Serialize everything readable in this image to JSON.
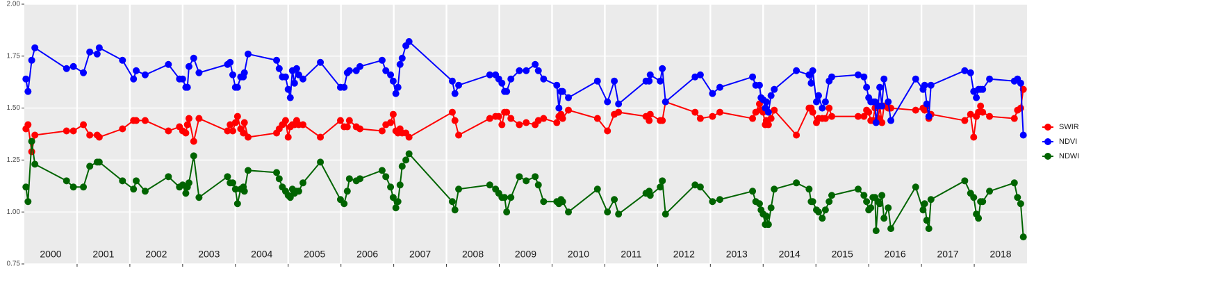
{
  "chart_data": {
    "type": "line",
    "x": [
      2000.03,
      2000.07,
      2000.14,
      2000.2,
      2000.8,
      2000.93,
      2001.12,
      2001.24,
      2001.38,
      2001.42,
      2001.86,
      2002.07,
      2002.12,
      2002.29,
      2002.73,
      2002.94,
      2003.0,
      2003.06,
      2003.09,
      2003.12,
      2003.21,
      2003.31,
      2003.85,
      2003.9,
      2003.95,
      2004.0,
      2004.04,
      2004.1,
      2004.15,
      2004.17,
      2004.24,
      2004.78,
      2004.83,
      2004.89,
      2004.95,
      2005.0,
      2005.04,
      2005.08,
      2005.12,
      2005.16,
      2005.2,
      2005.28,
      2005.61,
      2005.99,
      2006.06,
      2006.12,
      2006.16,
      2006.29,
      2006.36,
      2006.78,
      2006.85,
      2006.94,
      2006.99,
      2007.04,
      2007.08,
      2007.12,
      2007.16,
      2007.23,
      2007.29,
      2008.11,
      2008.16,
      2008.23,
      2008.82,
      2008.93,
      2008.99,
      2009.05,
      2009.1,
      2009.14,
      2009.22,
      2009.38,
      2009.51,
      2009.68,
      2009.74,
      2009.84,
      2010.09,
      2010.13,
      2010.17,
      2010.2,
      2010.31,
      2010.86,
      2011.05,
      2011.18,
      2011.26,
      2011.78,
      2011.84,
      2011.86,
      2012.05,
      2012.09,
      2012.15,
      2012.71,
      2012.81,
      2013.04,
      2013.18,
      2013.8,
      2013.86,
      2013.93,
      2013.96,
      2014.0,
      2014.04,
      2014.06,
      2014.1,
      2014.15,
      2014.21,
      2014.63,
      2014.87,
      2014.91,
      2014.94,
      2015.01,
      2015.05,
      2015.12,
      2015.18,
      2015.25,
      2015.3,
      2015.8,
      2015.91,
      2015.96,
      2016.0,
      2016.04,
      2016.08,
      2016.12,
      2016.14,
      2016.18,
      2016.21,
      2016.25,
      2016.29,
      2016.37,
      2016.42,
      2016.89,
      2017.03,
      2017.06,
      2017.1,
      2017.14,
      2017.18,
      2017.82,
      2017.93,
      2017.99,
      2018.04,
      2018.08,
      2018.12,
      2018.16,
      2018.29,
      2018.76,
      2018.82,
      2018.88,
      2018.93
    ],
    "series": [
      {
        "name": "SWIR",
        "color": "#ff0000",
        "values": [
          1.4,
          1.42,
          1.29,
          1.37,
          1.39,
          1.39,
          1.42,
          1.37,
          1.37,
          1.36,
          1.4,
          1.44,
          1.44,
          1.44,
          1.39,
          1.41,
          1.39,
          1.38,
          1.42,
          1.45,
          1.34,
          1.45,
          1.39,
          1.42,
          1.39,
          1.43,
          1.46,
          1.4,
          1.38,
          1.43,
          1.36,
          1.38,
          1.4,
          1.42,
          1.44,
          1.36,
          1.41,
          1.42,
          1.42,
          1.44,
          1.42,
          1.42,
          1.36,
          1.44,
          1.41,
          1.41,
          1.44,
          1.41,
          1.4,
          1.39,
          1.42,
          1.43,
          1.47,
          1.39,
          1.38,
          1.4,
          1.38,
          1.38,
          1.36,
          1.48,
          1.44,
          1.37,
          1.45,
          1.46,
          1.46,
          1.42,
          1.48,
          1.48,
          1.45,
          1.42,
          1.43,
          1.42,
          1.44,
          1.45,
          1.43,
          1.46,
          1.47,
          1.45,
          1.49,
          1.45,
          1.39,
          1.47,
          1.48,
          1.46,
          1.44,
          1.47,
          1.44,
          1.44,
          1.53,
          1.48,
          1.45,
          1.46,
          1.48,
          1.45,
          1.48,
          1.52,
          1.49,
          1.48,
          1.42,
          1.44,
          1.42,
          1.45,
          1.49,
          1.37,
          1.5,
          1.5,
          1.48,
          1.43,
          1.45,
          1.45,
          1.45,
          1.5,
          1.46,
          1.46,
          1.46,
          1.49,
          1.48,
          1.44,
          1.44,
          1.5,
          1.44,
          1.45,
          1.51,
          1.43,
          1.51,
          1.5,
          1.5,
          1.49,
          1.5,
          1.49,
          1.51,
          1.45,
          1.47,
          1.44,
          1.47,
          1.36,
          1.46,
          1.48,
          1.51,
          1.48,
          1.46,
          1.45,
          1.49,
          1.5,
          1.59
        ]
      },
      {
        "name": "NDVI",
        "color": "#0000ff",
        "values": [
          1.64,
          1.58,
          1.73,
          1.79,
          1.69,
          1.7,
          1.67,
          1.77,
          1.76,
          1.79,
          1.73,
          1.64,
          1.68,
          1.66,
          1.71,
          1.64,
          1.64,
          1.6,
          1.6,
          1.7,
          1.74,
          1.67,
          1.71,
          1.72,
          1.66,
          1.6,
          1.6,
          1.65,
          1.65,
          1.67,
          1.76,
          1.73,
          1.69,
          1.65,
          1.65,
          1.59,
          1.55,
          1.68,
          1.62,
          1.69,
          1.66,
          1.64,
          1.72,
          1.6,
          1.6,
          1.67,
          1.68,
          1.68,
          1.7,
          1.73,
          1.68,
          1.66,
          1.63,
          1.57,
          1.6,
          1.71,
          1.74,
          1.8,
          1.82,
          1.63,
          1.57,
          1.61,
          1.66,
          1.66,
          1.64,
          1.62,
          1.58,
          1.58,
          1.64,
          1.68,
          1.68,
          1.71,
          1.68,
          1.64,
          1.61,
          1.5,
          1.58,
          1.58,
          1.55,
          1.63,
          1.53,
          1.63,
          1.52,
          1.63,
          1.63,
          1.66,
          1.63,
          1.69,
          1.53,
          1.65,
          1.66,
          1.57,
          1.6,
          1.65,
          1.61,
          1.61,
          1.55,
          1.54,
          1.5,
          1.53,
          1.48,
          1.56,
          1.59,
          1.68,
          1.66,
          1.62,
          1.68,
          1.53,
          1.56,
          1.5,
          1.53,
          1.63,
          1.65,
          1.66,
          1.65,
          1.6,
          1.55,
          1.53,
          1.53,
          1.53,
          1.43,
          1.51,
          1.6,
          1.51,
          1.64,
          1.53,
          1.44,
          1.64,
          1.59,
          1.61,
          1.52,
          1.46,
          1.61,
          1.68,
          1.67,
          1.58,
          1.55,
          1.59,
          1.59,
          1.59,
          1.64,
          1.63,
          1.64,
          1.62,
          1.37
        ]
      },
      {
        "name": "NDWI",
        "color": "#006400",
        "values": [
          1.12,
          1.05,
          1.34,
          1.23,
          1.15,
          1.12,
          1.12,
          1.22,
          1.24,
          1.24,
          1.15,
          1.11,
          1.15,
          1.1,
          1.17,
          1.12,
          1.13,
          1.09,
          1.12,
          1.14,
          1.27,
          1.07,
          1.17,
          1.14,
          1.14,
          1.11,
          1.04,
          1.11,
          1.12,
          1.1,
          1.2,
          1.19,
          1.16,
          1.12,
          1.1,
          1.08,
          1.07,
          1.11,
          1.09,
          1.1,
          1.1,
          1.14,
          1.24,
          1.06,
          1.04,
          1.1,
          1.16,
          1.15,
          1.16,
          1.2,
          1.17,
          1.12,
          1.07,
          1.02,
          1.05,
          1.13,
          1.22,
          1.25,
          1.28,
          1.05,
          1.01,
          1.11,
          1.13,
          1.11,
          1.09,
          1.07,
          1.07,
          1.0,
          1.07,
          1.17,
          1.15,
          1.17,
          1.13,
          1.05,
          1.05,
          1.04,
          1.06,
          1.05,
          1.0,
          1.11,
          1.0,
          1.06,
          0.99,
          1.09,
          1.1,
          1.08,
          1.12,
          1.15,
          0.99,
          1.13,
          1.12,
          1.05,
          1.06,
          1.1,
          1.05,
          1.04,
          1.01,
          0.99,
          0.94,
          0.98,
          0.94,
          1.02,
          1.11,
          1.14,
          1.11,
          1.05,
          1.05,
          1.01,
          1.0,
          0.97,
          1.01,
          1.05,
          1.08,
          1.11,
          1.08,
          1.05,
          1.01,
          1.02,
          1.07,
          1.07,
          0.91,
          1.05,
          1.04,
          1.08,
          0.97,
          1.02,
          0.92,
          1.12,
          1.01,
          1.04,
          0.96,
          0.92,
          1.06,
          1.15,
          1.09,
          1.07,
          0.99,
          0.97,
          1.05,
          1.05,
          1.1,
          1.14,
          1.07,
          1.04,
          0.88
        ]
      }
    ],
    "xlim": [
      2000,
      2019
    ],
    "xticks": [
      {
        "value": 2000.5,
        "label": "2000"
      },
      {
        "value": 2001.5,
        "label": "2001"
      },
      {
        "value": 2002.5,
        "label": "2002"
      },
      {
        "value": 2003.5,
        "label": "2003"
      },
      {
        "value": 2004.5,
        "label": "2004"
      },
      {
        "value": 2005.5,
        "label": "2005"
      },
      {
        "value": 2006.5,
        "label": "2006"
      },
      {
        "value": 2007.5,
        "label": "2007"
      },
      {
        "value": 2008.5,
        "label": "2008"
      },
      {
        "value": 2009.5,
        "label": "2009"
      },
      {
        "value": 2010.5,
        "label": "2010"
      },
      {
        "value": 2011.5,
        "label": "2011"
      },
      {
        "value": 2012.5,
        "label": "2012"
      },
      {
        "value": 2013.5,
        "label": "2013"
      },
      {
        "value": 2014.5,
        "label": "2014"
      },
      {
        "value": 2015.5,
        "label": "2015"
      },
      {
        "value": 2016.5,
        "label": "2016"
      },
      {
        "value": 2017.5,
        "label": "2017"
      },
      {
        "value": 2018.5,
        "label": "2018"
      }
    ],
    "xgrid": [
      2001,
      2002,
      2003,
      2004,
      2005,
      2006,
      2007,
      2008,
      2009,
      2010,
      2011,
      2012,
      2013,
      2014,
      2015,
      2016,
      2017,
      2018
    ],
    "ylim": [
      0.75,
      2.0
    ],
    "yticks": [
      {
        "value": 0.75,
        "label": "0.75"
      },
      {
        "value": 1.0,
        "label": "1.00"
      },
      {
        "value": 1.25,
        "label": "1.25"
      },
      {
        "value": 1.5,
        "label": "1.50"
      },
      {
        "value": 1.75,
        "label": "1.75"
      },
      {
        "value": 2.0,
        "label": "2.00"
      }
    ],
    "grid": true,
    "legend": "right"
  }
}
